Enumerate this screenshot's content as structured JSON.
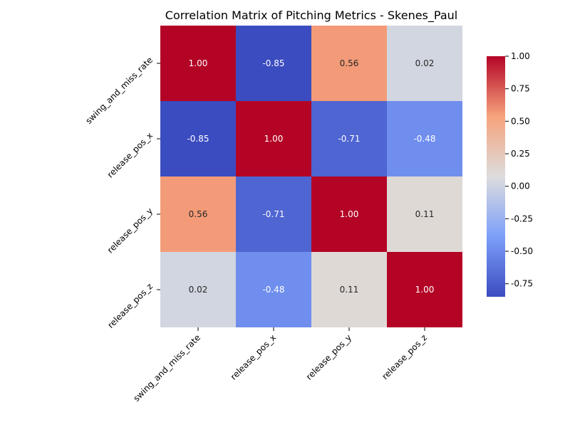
{
  "chart_data": {
    "type": "heatmap",
    "title": "Correlation Matrix of Pitching Metrics - Skenes_Paul",
    "xlabel": "",
    "ylabel": "",
    "x_labels": [
      "swing_and_miss_rate",
      "release_pos_x",
      "release_pos_y",
      "release_pos_z"
    ],
    "y_labels": [
      "swing_and_miss_rate",
      "release_pos_x",
      "release_pos_y",
      "release_pos_z"
    ],
    "values": [
      [
        1.0,
        -0.85,
        0.56,
        0.02
      ],
      [
        -0.85,
        1.0,
        -0.71,
        -0.48
      ],
      [
        0.56,
        -0.71,
        1.0,
        0.11
      ],
      [
        0.02,
        -0.48,
        0.11,
        1.0
      ]
    ],
    "annotation_format": "0.00",
    "colormap": "coolwarm",
    "vmin": -0.85,
    "vmax": 1.0,
    "colorbar_ticks": [
      "1.00",
      "0.75",
      "0.50",
      "0.25",
      "0.00",
      "-0.25",
      "-0.50",
      "-0.75"
    ],
    "grid": false,
    "colorbar_placement": "right"
  }
}
